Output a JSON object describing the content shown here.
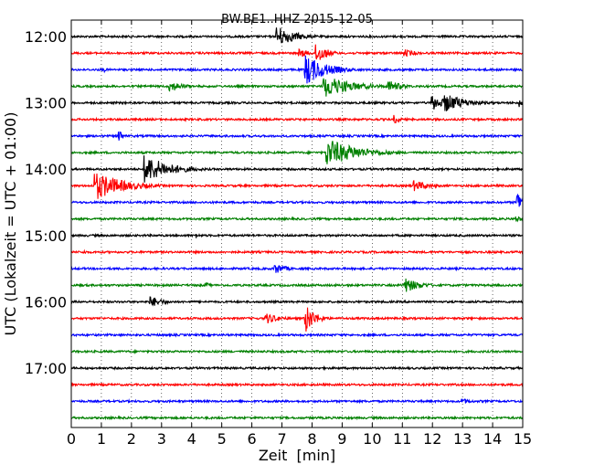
{
  "chart_data": {
    "type": "line",
    "title": "BW.BE1..HHZ 2015-12-05",
    "xlabel": "Zeit  [min]",
    "ylabel": "UTC (Lokalzeit = UTC + 01:00)",
    "xlim": [
      0,
      15
    ],
    "x_ticks": [
      "0",
      "1",
      "2",
      "3",
      "4",
      "5",
      "6",
      "7",
      "8",
      "9",
      "10",
      "11",
      "12",
      "13",
      "14",
      "15"
    ],
    "y_ticks": [
      "12:00",
      "13:00",
      "14:00",
      "15:00",
      "16:00",
      "17:00"
    ],
    "grid": true,
    "trace_minutes": 15,
    "colors": [
      "#000000",
      "#ff0000",
      "#0000ff",
      "#008000"
    ],
    "series": [
      {
        "start": "12:00",
        "events": [
          [
            6.85,
            12,
            1.3
          ]
        ]
      },
      {
        "start": "12:15",
        "events": [
          [
            7.6,
            5,
            0.8
          ],
          [
            8.15,
            13,
            0.7
          ],
          [
            11.1,
            4,
            1.0
          ]
        ]
      },
      {
        "start": "12:30",
        "events": [
          [
            1.1,
            2.5,
            0.3
          ],
          [
            7.8,
            17,
            1.5
          ],
          [
            8.5,
            5,
            1.2
          ]
        ]
      },
      {
        "start": "12:45",
        "events": [
          [
            3.3,
            6,
            1.0
          ],
          [
            8.4,
            13,
            2.0
          ],
          [
            10.55,
            7,
            1.0
          ]
        ]
      },
      {
        "start": "13:00",
        "events": [
          [
            12.0,
            9,
            1.0
          ],
          [
            12.4,
            11,
            1.6
          ],
          [
            14.9,
            5,
            0.2
          ]
        ]
      },
      {
        "start": "13:15",
        "events": [
          [
            10.75,
            5,
            0.4
          ]
        ]
      },
      {
        "start": "13:30",
        "events": [
          [
            1.6,
            10,
            0.2
          ]
        ]
      },
      {
        "start": "13:45",
        "events": [
          [
            8.5,
            16,
            2.2
          ],
          [
            9.4,
            7,
            0.3
          ]
        ]
      },
      {
        "start": "14:00",
        "events": [
          [
            2.45,
            16,
            1.8
          ]
        ]
      },
      {
        "start": "14:15",
        "events": [
          [
            0.8,
            16,
            2.0
          ],
          [
            11.4,
            6,
            1.2
          ]
        ]
      },
      {
        "start": "14:30",
        "events": [
          [
            14.85,
            12,
            0.5
          ]
        ]
      },
      {
        "start": "14:45",
        "events": [
          [
            14.8,
            4,
            0.4
          ]
        ]
      },
      {
        "start": "15:00",
        "events": [
          [
            4.15,
            3,
            0.3
          ]
        ]
      },
      {
        "start": "15:15",
        "events": [
          [
            0.45,
            2,
            0.3
          ]
        ]
      },
      {
        "start": "15:30",
        "events": [
          [
            6.8,
            6,
            0.8
          ]
        ]
      },
      {
        "start": "15:45",
        "events": [
          [
            11.05,
            9,
            1.2
          ],
          [
            4.5,
            3,
            0.3
          ]
        ]
      },
      {
        "start": "16:00",
        "events": [
          [
            2.65,
            6,
            1.0
          ]
        ]
      },
      {
        "start": "16:15",
        "events": [
          [
            6.5,
            6,
            1.0
          ],
          [
            7.8,
            16,
            0.7
          ]
        ]
      },
      {
        "start": "16:30",
        "events": []
      },
      {
        "start": "16:45",
        "events": []
      },
      {
        "start": "17:00",
        "events": []
      },
      {
        "start": "17:15",
        "events": []
      },
      {
        "start": "17:30",
        "events": [
          [
            13.0,
            3,
            1.0
          ]
        ]
      },
      {
        "start": "17:45",
        "events": []
      }
    ]
  }
}
